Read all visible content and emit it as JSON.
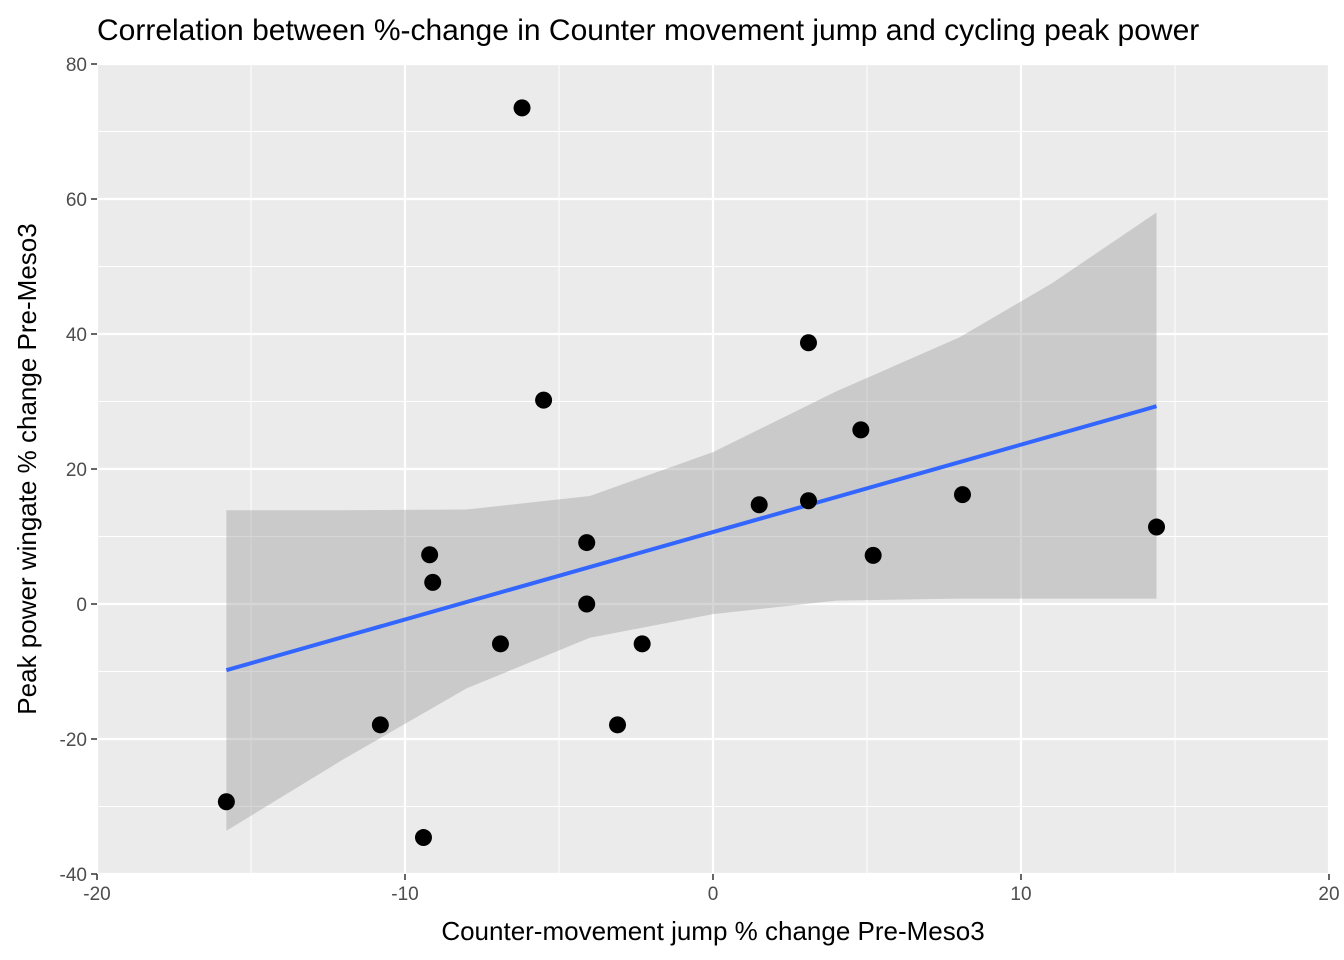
{
  "chart_data": {
    "type": "scatter",
    "title": "Correlation between %-change in Counter movement jump and cycling peak power",
    "xlabel": "Counter-movement jump % change Pre-Meso3",
    "ylabel": "Peak power wingate % change Pre-Meso3",
    "xlim": [
      -20,
      20
    ],
    "ylim": [
      -40,
      80
    ],
    "x_ticks": [
      -20,
      -10,
      0,
      10,
      20
    ],
    "y_ticks": [
      -40,
      -20,
      0,
      20,
      40,
      60,
      80
    ],
    "x_tick_labels": [
      "-20",
      "-10",
      "0",
      "10",
      "20"
    ],
    "y_tick_labels": [
      "-40",
      "-20",
      "0",
      "20",
      "40",
      "60",
      "80"
    ],
    "grid": true,
    "legend": "none",
    "points": [
      {
        "x": -15.8,
        "y": -29.3
      },
      {
        "x": -10.8,
        "y": -17.9
      },
      {
        "x": -9.4,
        "y": -34.6
      },
      {
        "x": -9.2,
        "y": 7.3
      },
      {
        "x": -9.1,
        "y": 3.2
      },
      {
        "x": -6.9,
        "y": -5.9
      },
      {
        "x": -6.2,
        "y": 73.5
      },
      {
        "x": -5.5,
        "y": 30.2
      },
      {
        "x": -4.1,
        "y": 9.1
      },
      {
        "x": -4.1,
        "y": 0.0
      },
      {
        "x": -3.1,
        "y": -17.9
      },
      {
        "x": -2.3,
        "y": -5.9
      },
      {
        "x": 1.5,
        "y": 14.7
      },
      {
        "x": 3.1,
        "y": 38.7
      },
      {
        "x": 3.1,
        "y": 15.3
      },
      {
        "x": 4.8,
        "y": 25.8
      },
      {
        "x": 5.2,
        "y": 7.2
      },
      {
        "x": 8.1,
        "y": 16.2
      },
      {
        "x": 14.4,
        "y": 11.4
      }
    ],
    "fit_line": {
      "x": [
        -15.8,
        14.4
      ],
      "y": [
        -9.8,
        29.3
      ]
    },
    "confidence_band": {
      "x": [
        -15.8,
        -12,
        -8,
        -4,
        0,
        4,
        8,
        11,
        14.4
      ],
      "lower": [
        -33.6,
        -23,
        -12.5,
        -5,
        -1.5,
        0.5,
        0.8,
        0.8,
        0.8
      ],
      "upper": [
        13.9,
        13.9,
        14,
        16,
        22.5,
        31.5,
        39.5,
        47.5,
        58.0
      ]
    },
    "colors": {
      "panel": "#ebebeb",
      "grid": "#ffffff",
      "points": "#000000",
      "fit_line": "#3366ff",
      "band": "#999999"
    }
  }
}
